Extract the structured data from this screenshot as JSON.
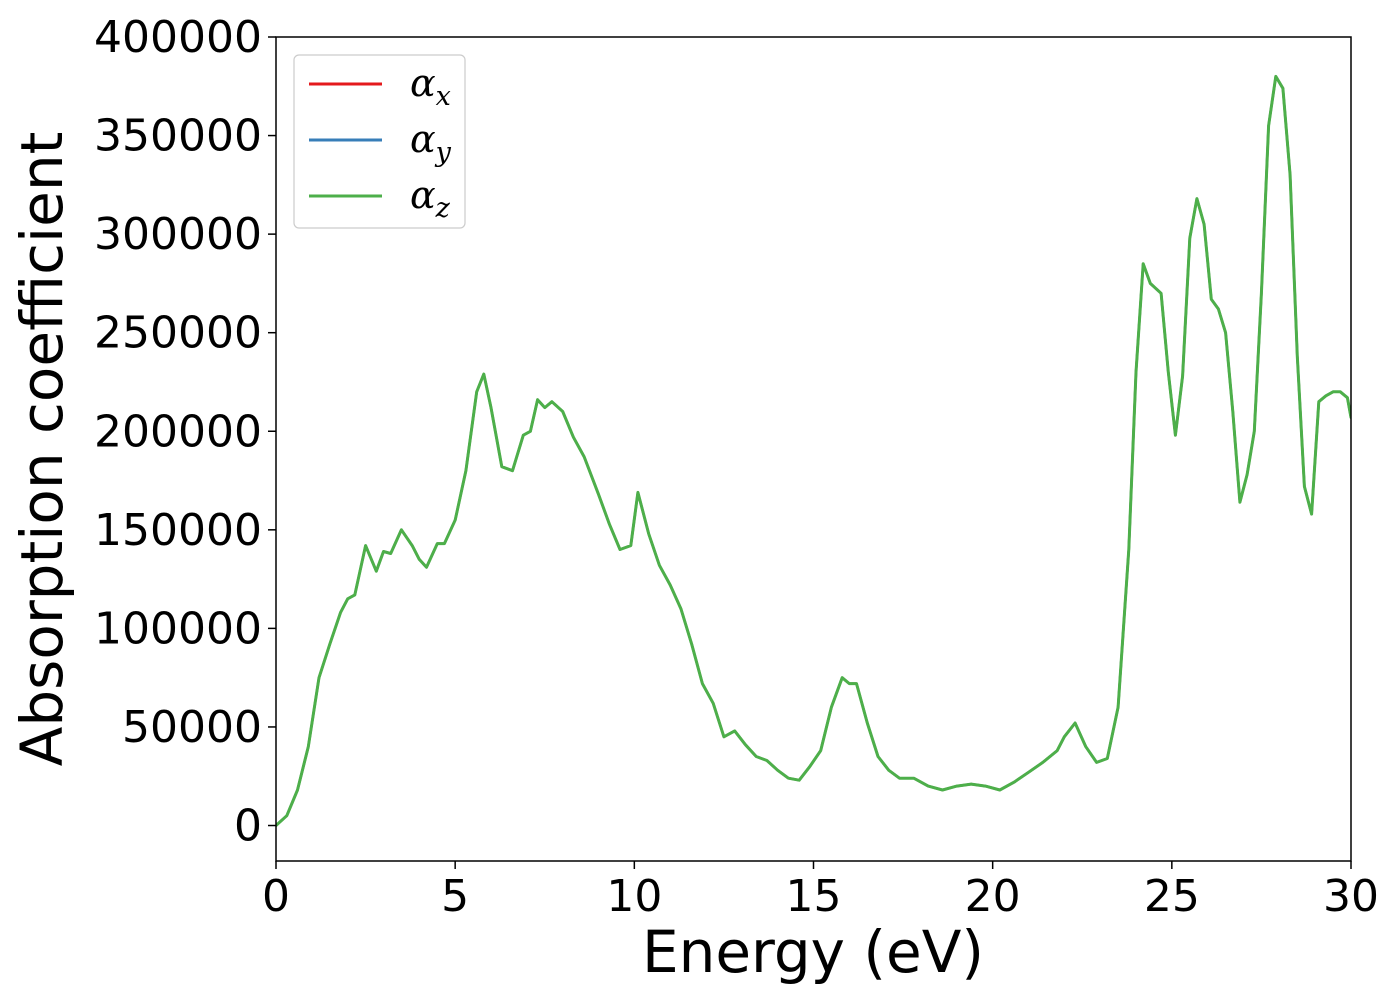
{
  "chart_data": {
    "type": "line",
    "title": "",
    "xlabel": "Energy (eV)",
    "ylabel": "Absorption coefficient",
    "xlim": [
      0,
      30
    ],
    "ylim": [
      -18000,
      400000
    ],
    "xticks": [
      0,
      5,
      10,
      15,
      20,
      25,
      30
    ],
    "xtick_labels": [
      "0",
      "5",
      "10",
      "15",
      "20",
      "25",
      "30"
    ],
    "yticks": [
      0,
      50000,
      100000,
      150000,
      200000,
      250000,
      300000,
      350000,
      400000
    ],
    "ytick_labels": [
      "0",
      "50000",
      "100000",
      "150000",
      "200000",
      "250000",
      "300000",
      "350000",
      "400000"
    ],
    "grid": false,
    "legend_position": "top-left",
    "legend": [
      {
        "symbol": "α",
        "subscript": "x",
        "color": "#e41a1c"
      },
      {
        "symbol": "α",
        "subscript": "y",
        "color": "#377eb8"
      },
      {
        "symbol": "α",
        "subscript": "z",
        "color": "#4daf4a"
      }
    ],
    "x": [
      0,
      0.3,
      0.6,
      0.9,
      1.2,
      1.5,
      1.8,
      2.0,
      2.2,
      2.5,
      2.8,
      3.0,
      3.2,
      3.5,
      3.8,
      4.0,
      4.2,
      4.5,
      4.7,
      5.0,
      5.3,
      5.6,
      5.8,
      6.0,
      6.3,
      6.6,
      6.9,
      7.1,
      7.3,
      7.5,
      7.7,
      8.0,
      8.3,
      8.6,
      9.0,
      9.3,
      9.6,
      9.9,
      10.1,
      10.4,
      10.7,
      11.0,
      11.3,
      11.6,
      11.9,
      12.2,
      12.5,
      12.8,
      13.1,
      13.4,
      13.7,
      14.0,
      14.3,
      14.6,
      14.9,
      15.2,
      15.5,
      15.8,
      16.0,
      16.2,
      16.5,
      16.8,
      17.1,
      17.4,
      17.8,
      18.2,
      18.6,
      19.0,
      19.4,
      19.8,
      20.2,
      20.6,
      21.0,
      21.4,
      21.8,
      22.0,
      22.3,
      22.6,
      22.9,
      23.2,
      23.5,
      23.8,
      24.0,
      24.2,
      24.4,
      24.7,
      24.9,
      25.1,
      25.3,
      25.5,
      25.7,
      25.9,
      26.1,
      26.3,
      26.5,
      26.7,
      26.9,
      27.1,
      27.3,
      27.5,
      27.7,
      27.9,
      28.1,
      28.3,
      28.5,
      28.7,
      28.9,
      29.1,
      29.3,
      29.5,
      29.7,
      29.9,
      30.0
    ],
    "series": [
      {
        "name": "αx",
        "color": "#e41a1c",
        "width": 2.5,
        "values": [
          0,
          5000,
          18000,
          40000,
          75000,
          92000,
          108000,
          115000,
          117000,
          142000,
          129000,
          139000,
          138000,
          150000,
          142000,
          135000,
          131000,
          143000,
          143000,
          155000,
          180000,
          220000,
          229000,
          212000,
          182000,
          180000,
          198000,
          200000,
          216000,
          212000,
          215000,
          210000,
          197000,
          187000,
          168000,
          153000,
          140000,
          142000,
          169000,
          148000,
          132000,
          122000,
          110000,
          92000,
          72000,
          62000,
          45000,
          48000,
          41000,
          35000,
          33000,
          28000,
          24000,
          23000,
          30000,
          38000,
          60000,
          75000,
          72000,
          72000,
          52000,
          35000,
          28000,
          24000,
          24000,
          20000,
          18000,
          20000,
          21000,
          20000,
          18000,
          22000,
          27000,
          32000,
          38000,
          45000,
          52000,
          40000,
          32000,
          34000,
          60000,
          140000,
          230000,
          285000,
          275000,
          270000,
          230000,
          198000,
          228000,
          298000,
          318000,
          305000,
          267000,
          262000,
          250000,
          210000,
          164000,
          178000,
          200000,
          270000,
          355000,
          380000,
          374000,
          330000,
          238000,
          172000,
          158000,
          215000,
          218000,
          220000,
          220000,
          217000,
          207000
        ]
      },
      {
        "name": "αy",
        "color": "#377eb8",
        "width": 2.5,
        "values": [
          0,
          5000,
          18000,
          40000,
          75000,
          92000,
          108000,
          115000,
          117000,
          142000,
          129000,
          139000,
          138000,
          150000,
          142000,
          135000,
          131000,
          143000,
          143000,
          155000,
          180000,
          220000,
          229000,
          212000,
          182000,
          180000,
          198000,
          200000,
          216000,
          212000,
          215000,
          210000,
          197000,
          187000,
          168000,
          153000,
          140000,
          142000,
          169000,
          148000,
          132000,
          122000,
          110000,
          92000,
          72000,
          62000,
          45000,
          48000,
          41000,
          35000,
          33000,
          28000,
          24000,
          23000,
          30000,
          38000,
          60000,
          75000,
          72000,
          72000,
          52000,
          35000,
          28000,
          24000,
          24000,
          20000,
          18000,
          20000,
          21000,
          20000,
          18000,
          22000,
          27000,
          32000,
          38000,
          45000,
          52000,
          40000,
          32000,
          34000,
          60000,
          140000,
          230000,
          285000,
          275000,
          270000,
          230000,
          198000,
          228000,
          298000,
          318000,
          305000,
          267000,
          262000,
          250000,
          210000,
          164000,
          178000,
          200000,
          270000,
          355000,
          380000,
          374000,
          330000,
          238000,
          172000,
          158000,
          215000,
          218000,
          220000,
          220000,
          217000,
          207000
        ]
      },
      {
        "name": "αz",
        "color": "#4daf4a",
        "width": 3,
        "values": [
          0,
          5000,
          18000,
          40000,
          75000,
          92000,
          108000,
          115000,
          117000,
          142000,
          129000,
          139000,
          138000,
          150000,
          142000,
          135000,
          131000,
          143000,
          143000,
          155000,
          180000,
          220000,
          229000,
          212000,
          182000,
          180000,
          198000,
          200000,
          216000,
          212000,
          215000,
          210000,
          197000,
          187000,
          168000,
          153000,
          140000,
          142000,
          169000,
          148000,
          132000,
          122000,
          110000,
          92000,
          72000,
          62000,
          45000,
          48000,
          41000,
          35000,
          33000,
          28000,
          24000,
          23000,
          30000,
          38000,
          60000,
          75000,
          72000,
          72000,
          52000,
          35000,
          28000,
          24000,
          24000,
          20000,
          18000,
          20000,
          21000,
          20000,
          18000,
          22000,
          27000,
          32000,
          38000,
          45000,
          52000,
          40000,
          32000,
          34000,
          60000,
          140000,
          230000,
          285000,
          275000,
          270000,
          230000,
          198000,
          228000,
          298000,
          318000,
          305000,
          267000,
          262000,
          250000,
          210000,
          164000,
          178000,
          200000,
          270000,
          355000,
          380000,
          374000,
          330000,
          238000,
          172000,
          158000,
          215000,
          218000,
          220000,
          220000,
          217000,
          207000
        ]
      }
    ]
  }
}
